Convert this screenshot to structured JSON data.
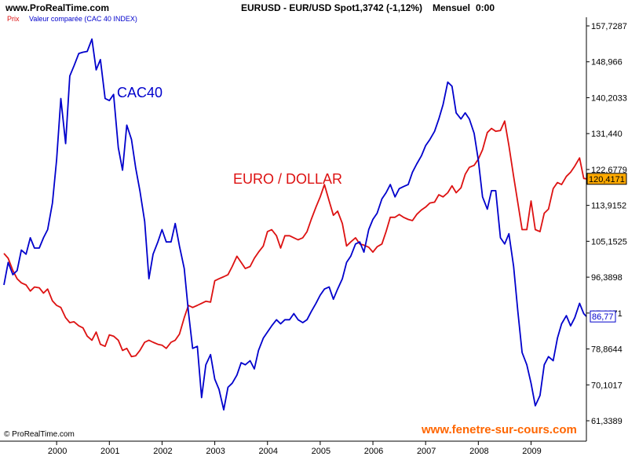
{
  "header": {
    "site": "www.ProRealTime.com",
    "instrument": "EURUSD - EUR/USD Spot",
    "quote": "1,3742 (-1,12%)",
    "period": "Mensuel",
    "time": "0:00"
  },
  "legend": {
    "prix": "Prix",
    "compared": "Valeur comparée (CAC 40 INDEX)"
  },
  "annotations": {
    "cac": "CAC40",
    "eur": "EURO / DOLLAR"
  },
  "footer": {
    "credit": "© ProRealTime.com",
    "website": "www.fenetre-sur-cours.com"
  },
  "colors": {
    "eurusd": "#dd1111",
    "cac40": "#0000cc",
    "eur_badge_bg": "#ffaa00",
    "website": "#ff6600"
  },
  "chart_data": {
    "type": "line",
    "x_axis_labels": [
      "2000",
      "2001",
      "2002",
      "2003",
      "2004",
      "2005",
      "2006",
      "2007",
      "2008",
      "2009"
    ],
    "x_range": [
      1999.0,
      2010.05
    ],
    "ylim": [
      61.3389,
      157.7287
    ],
    "y_tick_labels": [
      "157,7287",
      "148,966",
      "140,2033",
      "131,440",
      "122,6779",
      "113,9152",
      "105,1525",
      "96,3898",
      "87,6271",
      "78,8644",
      "70,1017",
      "61,3389"
    ],
    "y_tick_values": [
      157.7287,
      148.966,
      140.2033,
      131.44,
      122.6779,
      113.9152,
      105.1525,
      96.3898,
      87.6271,
      78.8644,
      70.1017,
      61.3389
    ],
    "last_values": {
      "eurusd": "120,4171",
      "cac40": "86,77"
    },
    "series": [
      {
        "name": "EURO / DOLLAR",
        "color": "#dd1111",
        "points": [
          [
            1999.0,
            102.2
          ],
          [
            1999.08,
            101
          ],
          [
            1999.17,
            98
          ],
          [
            1999.25,
            96
          ],
          [
            1999.33,
            95
          ],
          [
            1999.42,
            94.5
          ],
          [
            1999.5,
            93
          ],
          [
            1999.58,
            94
          ],
          [
            1999.67,
            93.8
          ],
          [
            1999.75,
            92.5
          ],
          [
            1999.83,
            93.5
          ],
          [
            1999.92,
            90.6
          ],
          [
            2000.0,
            89.5
          ],
          [
            2000.08,
            89
          ],
          [
            2000.17,
            86.5
          ],
          [
            2000.25,
            85.3
          ],
          [
            2000.33,
            85.5
          ],
          [
            2000.42,
            84.5
          ],
          [
            2000.5,
            84
          ],
          [
            2000.58,
            82
          ],
          [
            2000.67,
            81
          ],
          [
            2000.75,
            83
          ],
          [
            2000.83,
            80
          ],
          [
            2000.92,
            79.5
          ],
          [
            2001.0,
            82.3
          ],
          [
            2001.08,
            82
          ],
          [
            2001.17,
            81
          ],
          [
            2001.25,
            78.5
          ],
          [
            2001.33,
            79
          ],
          [
            2001.42,
            77
          ],
          [
            2001.5,
            77.2
          ],
          [
            2001.58,
            78.5
          ],
          [
            2001.67,
            80.5
          ],
          [
            2001.75,
            81
          ],
          [
            2001.83,
            80.5
          ],
          [
            2001.92,
            80
          ],
          [
            2002.0,
            79.8
          ],
          [
            2002.08,
            79
          ],
          [
            2002.17,
            80.5
          ],
          [
            2002.25,
            81
          ],
          [
            2002.33,
            82.5
          ],
          [
            2002.42,
            86.5
          ],
          [
            2002.5,
            89.5
          ],
          [
            2002.58,
            89
          ],
          [
            2002.67,
            89.5
          ],
          [
            2002.75,
            90
          ],
          [
            2002.83,
            90.5
          ],
          [
            2002.92,
            90.3
          ],
          [
            2003.0,
            95.5
          ],
          [
            2003.08,
            96
          ],
          [
            2003.17,
            96.5
          ],
          [
            2003.25,
            97
          ],
          [
            2003.33,
            99
          ],
          [
            2003.42,
            101.5
          ],
          [
            2003.5,
            100
          ],
          [
            2003.58,
            98.5
          ],
          [
            2003.67,
            99
          ],
          [
            2003.75,
            101
          ],
          [
            2003.83,
            102.5
          ],
          [
            2003.92,
            104
          ],
          [
            2004.0,
            107.5
          ],
          [
            2004.08,
            108
          ],
          [
            2004.17,
            106.5
          ],
          [
            2004.25,
            103.5
          ],
          [
            2004.33,
            106.5
          ],
          [
            2004.42,
            106.5
          ],
          [
            2004.5,
            106
          ],
          [
            2004.58,
            105.5
          ],
          [
            2004.67,
            106
          ],
          [
            2004.75,
            107.5
          ],
          [
            2004.83,
            110.5
          ],
          [
            2004.92,
            113.5
          ],
          [
            2005.0,
            116
          ],
          [
            2005.08,
            119
          ],
          [
            2005.17,
            115
          ],
          [
            2005.25,
            111.5
          ],
          [
            2005.33,
            112.5
          ],
          [
            2005.42,
            109.5
          ],
          [
            2005.5,
            104
          ],
          [
            2005.58,
            105
          ],
          [
            2005.67,
            106
          ],
          [
            2005.75,
            104.5
          ],
          [
            2005.83,
            104.2
          ],
          [
            2005.92,
            103.7
          ],
          [
            2006.0,
            102.5
          ],
          [
            2006.08,
            103.8
          ],
          [
            2006.17,
            104.5
          ],
          [
            2006.25,
            107.5
          ],
          [
            2006.33,
            111
          ],
          [
            2006.42,
            111
          ],
          [
            2006.5,
            111.7
          ],
          [
            2006.58,
            111
          ],
          [
            2006.67,
            110.5
          ],
          [
            2006.75,
            110.2
          ],
          [
            2006.83,
            111.7
          ],
          [
            2006.92,
            112.8
          ],
          [
            2007.0,
            113.5
          ],
          [
            2007.08,
            114.5
          ],
          [
            2007.17,
            114.7
          ],
          [
            2007.25,
            116.5
          ],
          [
            2007.33,
            116
          ],
          [
            2007.42,
            117
          ],
          [
            2007.5,
            118.7
          ],
          [
            2007.58,
            117
          ],
          [
            2007.67,
            118.2
          ],
          [
            2007.75,
            121.5
          ],
          [
            2007.83,
            123.2
          ],
          [
            2007.92,
            123.7
          ],
          [
            2008.0,
            125.2
          ],
          [
            2008.08,
            127.5
          ],
          [
            2008.17,
            131.7
          ],
          [
            2008.25,
            132.7
          ],
          [
            2008.33,
            132
          ],
          [
            2008.42,
            132.2
          ],
          [
            2008.5,
            134.5
          ],
          [
            2008.58,
            128.5
          ],
          [
            2008.67,
            121
          ],
          [
            2008.75,
            114.5
          ],
          [
            2008.83,
            108
          ],
          [
            2008.92,
            108
          ],
          [
            2009.0,
            115
          ],
          [
            2009.08,
            108
          ],
          [
            2009.17,
            107.5
          ],
          [
            2009.25,
            112
          ],
          [
            2009.33,
            113
          ],
          [
            2009.42,
            118
          ],
          [
            2009.5,
            119.5
          ],
          [
            2009.58,
            119
          ],
          [
            2009.67,
            121
          ],
          [
            2009.75,
            122
          ],
          [
            2009.83,
            123.5
          ],
          [
            2009.92,
            125.5
          ],
          [
            2010.0,
            120.5
          ],
          [
            2010.05,
            120.4
          ]
        ]
      },
      {
        "name": "CAC40",
        "color": "#0000cc",
        "points": [
          [
            1999.0,
            94.5
          ],
          [
            1999.08,
            100
          ],
          [
            1999.17,
            97
          ],
          [
            1999.25,
            98
          ],
          [
            1999.33,
            103
          ],
          [
            1999.42,
            102
          ],
          [
            1999.5,
            106
          ],
          [
            1999.58,
            103.5
          ],
          [
            1999.67,
            103.5
          ],
          [
            1999.75,
            106
          ],
          [
            1999.83,
            108
          ],
          [
            1999.92,
            114.5
          ],
          [
            2000.0,
            125
          ],
          [
            2000.08,
            140
          ],
          [
            2000.17,
            129
          ],
          [
            2000.25,
            145.5
          ],
          [
            2000.33,
            148
          ],
          [
            2000.42,
            151
          ],
          [
            2000.5,
            151.3
          ],
          [
            2000.58,
            151.5
          ],
          [
            2000.67,
            154.5
          ],
          [
            2000.75,
            147
          ],
          [
            2000.83,
            149.5
          ],
          [
            2000.92,
            140
          ],
          [
            2001.0,
            139.5
          ],
          [
            2001.08,
            141
          ],
          [
            2001.17,
            128
          ],
          [
            2001.25,
            122.5
          ],
          [
            2001.33,
            133.5
          ],
          [
            2001.42,
            130
          ],
          [
            2001.5,
            123
          ],
          [
            2001.58,
            117.5
          ],
          [
            2001.67,
            110
          ],
          [
            2001.75,
            96
          ],
          [
            2001.83,
            102
          ],
          [
            2001.92,
            105
          ],
          [
            2002.0,
            108
          ],
          [
            2002.08,
            105
          ],
          [
            2002.17,
            105
          ],
          [
            2002.25,
            109.5
          ],
          [
            2002.33,
            104
          ],
          [
            2002.42,
            98.5
          ],
          [
            2002.5,
            88
          ],
          [
            2002.58,
            79
          ],
          [
            2002.67,
            79.5
          ],
          [
            2002.75,
            67
          ],
          [
            2002.83,
            75
          ],
          [
            2002.92,
            77.5
          ],
          [
            2003.0,
            71.5
          ],
          [
            2003.08,
            69
          ],
          [
            2003.17,
            64
          ],
          [
            2003.25,
            69.5
          ],
          [
            2003.33,
            70.5
          ],
          [
            2003.42,
            72.5
          ],
          [
            2003.5,
            75.5
          ],
          [
            2003.58,
            75
          ],
          [
            2003.67,
            76
          ],
          [
            2003.75,
            74
          ],
          [
            2003.83,
            78.5
          ],
          [
            2003.92,
            81.5
          ],
          [
            2004.0,
            83
          ],
          [
            2004.08,
            84.5
          ],
          [
            2004.17,
            86
          ],
          [
            2004.25,
            85
          ],
          [
            2004.33,
            86
          ],
          [
            2004.42,
            86
          ],
          [
            2004.5,
            87.5
          ],
          [
            2004.58,
            86
          ],
          [
            2004.67,
            85.3
          ],
          [
            2004.75,
            86
          ],
          [
            2004.83,
            88
          ],
          [
            2004.92,
            90
          ],
          [
            2005.0,
            92
          ],
          [
            2005.08,
            93.5
          ],
          [
            2005.17,
            94
          ],
          [
            2005.25,
            91
          ],
          [
            2005.33,
            93.5
          ],
          [
            2005.42,
            96
          ],
          [
            2005.5,
            100
          ],
          [
            2005.58,
            101.5
          ],
          [
            2005.67,
            104.5
          ],
          [
            2005.75,
            105
          ],
          [
            2005.83,
            102.5
          ],
          [
            2005.92,
            108
          ],
          [
            2006.0,
            110.5
          ],
          [
            2006.08,
            112
          ],
          [
            2006.17,
            115.5
          ],
          [
            2006.25,
            117
          ],
          [
            2006.33,
            119
          ],
          [
            2006.42,
            116
          ],
          [
            2006.5,
            118
          ],
          [
            2006.58,
            118.5
          ],
          [
            2006.67,
            119
          ],
          [
            2006.75,
            122
          ],
          [
            2006.83,
            124
          ],
          [
            2006.92,
            126
          ],
          [
            2007.0,
            128.5
          ],
          [
            2007.08,
            130
          ],
          [
            2007.17,
            132
          ],
          [
            2007.25,
            135
          ],
          [
            2007.33,
            138.5
          ],
          [
            2007.42,
            144
          ],
          [
            2007.5,
            143
          ],
          [
            2007.58,
            136.5
          ],
          [
            2007.67,
            135
          ],
          [
            2007.75,
            136.5
          ],
          [
            2007.83,
            135
          ],
          [
            2007.92,
            131.5
          ],
          [
            2008.0,
            125
          ],
          [
            2008.08,
            116
          ],
          [
            2008.17,
            113
          ],
          [
            2008.25,
            117.5
          ],
          [
            2008.33,
            117.5
          ],
          [
            2008.42,
            106
          ],
          [
            2008.5,
            104.5
          ],
          [
            2008.58,
            107
          ],
          [
            2008.67,
            99
          ],
          [
            2008.75,
            88
          ],
          [
            2008.83,
            78
          ],
          [
            2008.92,
            75
          ],
          [
            2009.0,
            70.5
          ],
          [
            2009.08,
            65
          ],
          [
            2009.17,
            67.5
          ],
          [
            2009.25,
            75
          ],
          [
            2009.33,
            77
          ],
          [
            2009.42,
            76
          ],
          [
            2009.5,
            81.5
          ],
          [
            2009.58,
            85
          ],
          [
            2009.67,
            87
          ],
          [
            2009.75,
            84.5
          ],
          [
            2009.83,
            86.5
          ],
          [
            2009.92,
            90
          ],
          [
            2010.0,
            87.5
          ],
          [
            2010.05,
            86.8
          ]
        ]
      }
    ]
  }
}
